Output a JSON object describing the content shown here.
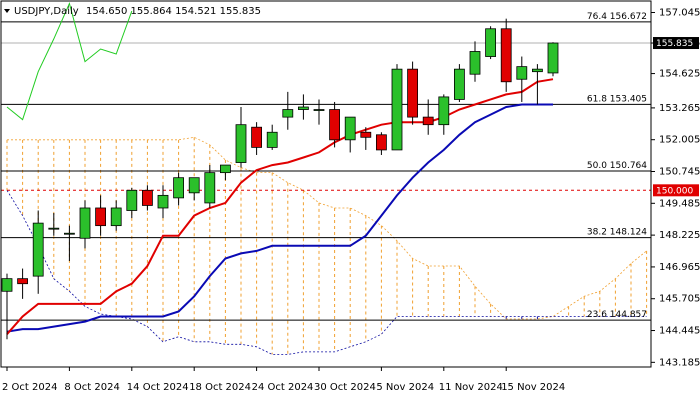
{
  "header": {
    "symbol": "USDJPY,Daily",
    "ohlc": "154.650 155.864 154.521 155.835"
  },
  "chart_data": {
    "type": "candlestick",
    "title": "USDJPY,Daily",
    "ylim": [
      143.0,
      157.5
    ],
    "y_ticks": [
      "157.045",
      "155.835",
      "154.625",
      "153.265",
      "152.005",
      "150.745",
      "149.485",
      "148.225",
      "146.965",
      "145.705",
      "144.445",
      "143.185"
    ],
    "x_tick_labels": [
      {
        "label": "2 Oct 2024",
        "index": 0
      },
      {
        "label": "8 Oct 2024",
        "index": 4
      },
      {
        "label": "14 Oct 2024",
        "index": 8
      },
      {
        "label": "18 Oct 2024",
        "index": 12
      },
      {
        "label": "24 Oct 2024",
        "index": 16
      },
      {
        "label": "30 Oct 2024",
        "index": 20
      },
      {
        "label": "5 Nov 2024",
        "index": 24
      },
      {
        "label": "11 Nov 2024",
        "index": 28
      },
      {
        "label": "15 Nov 2024",
        "index": 32
      }
    ],
    "current_price": {
      "label": "155.835",
      "value": 155.835,
      "color": "#000000"
    },
    "pivot_level": {
      "label": "150.000",
      "value": 150.0,
      "color": "#e00000"
    },
    "fib_levels": [
      {
        "label": "76.4 156.672",
        "value": 156.672
      },
      {
        "label": "61.8 153.405",
        "value": 153.405
      },
      {
        "label": "50.0 150.764",
        "value": 150.764
      },
      {
        "label": "38.2 148.124",
        "value": 148.124
      },
      {
        "label": "23.6 144.857",
        "value": 144.857
      }
    ],
    "candles": [
      {
        "o": 146.0,
        "h": 146.7,
        "l": 144.1,
        "c": 146.5
      },
      {
        "o": 146.5,
        "h": 146.9,
        "l": 145.7,
        "c": 146.3
      },
      {
        "o": 146.6,
        "h": 149.2,
        "l": 145.9,
        "c": 148.7
      },
      {
        "o": 148.5,
        "h": 149.1,
        "l": 148.2,
        "c": 148.5
      },
      {
        "o": 148.3,
        "h": 148.6,
        "l": 147.2,
        "c": 148.3
      },
      {
        "o": 148.1,
        "h": 149.6,
        "l": 147.7,
        "c": 149.3
      },
      {
        "o": 149.3,
        "h": 149.8,
        "l": 148.2,
        "c": 148.6
      },
      {
        "o": 148.6,
        "h": 149.6,
        "l": 148.4,
        "c": 149.3
      },
      {
        "o": 149.2,
        "h": 150.1,
        "l": 148.9,
        "c": 150.0
      },
      {
        "o": 150.0,
        "h": 150.2,
        "l": 149.2,
        "c": 149.4
      },
      {
        "o": 149.3,
        "h": 150.2,
        "l": 148.9,
        "c": 149.8
      },
      {
        "o": 149.7,
        "h": 150.7,
        "l": 149.4,
        "c": 150.5
      },
      {
        "o": 149.9,
        "h": 150.4,
        "l": 149.6,
        "c": 150.5
      },
      {
        "o": 149.5,
        "h": 151.0,
        "l": 149.3,
        "c": 150.7
      },
      {
        "o": 150.7,
        "h": 151.0,
        "l": 150.4,
        "c": 151.0
      },
      {
        "o": 151.1,
        "h": 153.3,
        "l": 150.9,
        "c": 152.6
      },
      {
        "o": 152.5,
        "h": 152.7,
        "l": 151.4,
        "c": 151.7
      },
      {
        "o": 151.7,
        "h": 152.6,
        "l": 151.6,
        "c": 152.3
      },
      {
        "o": 152.9,
        "h": 153.9,
        "l": 152.4,
        "c": 153.2
      },
      {
        "o": 153.2,
        "h": 153.8,
        "l": 152.8,
        "c": 153.3
      },
      {
        "o": 153.2,
        "h": 153.6,
        "l": 152.6,
        "c": 153.2
      },
      {
        "o": 153.2,
        "h": 153.5,
        "l": 151.7,
        "c": 152.0
      },
      {
        "o": 152.0,
        "h": 152.8,
        "l": 151.5,
        "c": 152.9
      },
      {
        "o": 152.3,
        "h": 152.5,
        "l": 151.6,
        "c": 152.1
      },
      {
        "o": 152.2,
        "h": 152.3,
        "l": 151.4,
        "c": 151.6
      },
      {
        "o": 151.6,
        "h": 155.0,
        "l": 151.6,
        "c": 154.8
      },
      {
        "o": 154.8,
        "h": 155.1,
        "l": 152.6,
        "c": 152.9
      },
      {
        "o": 152.9,
        "h": 153.6,
        "l": 152.2,
        "c": 152.6
      },
      {
        "o": 152.6,
        "h": 153.8,
        "l": 152.2,
        "c": 153.7
      },
      {
        "o": 153.6,
        "h": 155.0,
        "l": 153.5,
        "c": 154.8
      },
      {
        "o": 154.6,
        "h": 155.9,
        "l": 154.3,
        "c": 155.5
      },
      {
        "o": 155.3,
        "h": 156.5,
        "l": 155.2,
        "c": 156.4
      },
      {
        "o": 156.4,
        "h": 156.8,
        "l": 153.9,
        "c": 154.3
      },
      {
        "o": 154.4,
        "h": 155.3,
        "l": 153.5,
        "c": 154.9
      },
      {
        "o": 154.7,
        "h": 155.0,
        "l": 153.4,
        "c": 154.8
      },
      {
        "o": 154.65,
        "h": 155.864,
        "l": 154.521,
        "c": 155.835
      }
    ],
    "tenkan": [
      144.3,
      145.0,
      145.5,
      145.5,
      145.5,
      145.5,
      145.5,
      146.0,
      146.3,
      147.0,
      148.2,
      148.2,
      149.0,
      149.3,
      149.5,
      150.3,
      150.8,
      151.0,
      151.1,
      151.3,
      151.5,
      151.9,
      152.2,
      152.4,
      152.6,
      152.7,
      152.7,
      152.7,
      152.9,
      153.2,
      153.4,
      153.6,
      153.8,
      153.9,
      154.3,
      154.4
    ],
    "kijun": [
      144.4,
      144.5,
      144.5,
      144.6,
      144.7,
      144.8,
      145.0,
      145.0,
      145.0,
      145.0,
      145.0,
      145.2,
      145.8,
      146.6,
      147.3,
      147.5,
      147.6,
      147.8,
      147.8,
      147.8,
      147.8,
      147.8,
      147.8,
      148.2,
      149.0,
      149.8,
      150.5,
      151.1,
      151.6,
      152.2,
      152.7,
      153.0,
      153.3,
      153.4,
      153.4,
      153.4
    ],
    "senkou_a": [
      152.0,
      152.0,
      152.0,
      152.0,
      152.0,
      152.0,
      152.0,
      152.0,
      152.0,
      152.0,
      152.0,
      152.0,
      152.1,
      151.8,
      151.2,
      150.9,
      150.7,
      150.7,
      150.3,
      150.0,
      149.5,
      149.3,
      149.3,
      149.0,
      148.6,
      148.0,
      147.3,
      147.0,
      147.0,
      147.0,
      146.2,
      145.5,
      144.9,
      144.9,
      144.9,
      145.0,
      145.4,
      145.8,
      146.0,
      146.5,
      147.1,
      147.6
    ],
    "senkou_b": [
      150.0,
      149.0,
      147.8,
      146.5,
      146.0,
      145.4,
      145.1,
      145.0,
      144.9,
      144.6,
      144.0,
      144.2,
      144.0,
      144.0,
      143.9,
      143.9,
      143.8,
      143.5,
      143.5,
      143.6,
      143.6,
      143.6,
      143.8,
      144.0,
      144.3,
      145.0,
      145.0,
      145.0,
      145.0,
      145.0,
      145.0,
      145.0,
      145.0,
      145.0,
      145.0,
      145.0,
      145.0,
      145.0,
      145.0,
      145.0,
      145.0,
      145.0
    ],
    "chikou": [
      153.3,
      152.8,
      154.7,
      156.0,
      157.4,
      155.1,
      155.6,
      155.4,
      157.1
    ],
    "colors": {
      "bull": "#2bc02b",
      "bear": "#e00000",
      "tenkan": "#e00000",
      "kijun": "#0a0ab4",
      "chikou": "#22cc22",
      "cloud_up": "#f0a030",
      "cloud_down": "#0a0aa0",
      "grid": "#000000"
    }
  }
}
